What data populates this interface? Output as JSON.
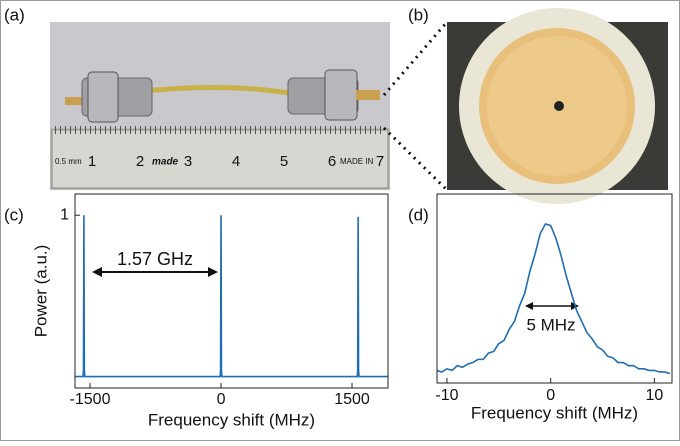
{
  "panels": {
    "a": "(a)",
    "b": "(b)",
    "c": "(c)",
    "d": "(d)"
  },
  "photo_a": {
    "ruler_labels": [
      "1",
      "2",
      "3",
      "4",
      "5",
      "6",
      "7"
    ],
    "ruler_small": "0.5 mm",
    "ruler_brand": "made",
    "ruler_made_in": "MADE IN"
  },
  "chart_data": [
    {
      "type": "line",
      "color": "#1f6db3",
      "xlabel": "Frequency shift (MHz)",
      "ylabel": "Power (a.u.)",
      "annotation": "1.57 GHz",
      "x": [
        -1672,
        -1580,
        -1575,
        -1570,
        -1565,
        -1560,
        -10,
        -5,
        0,
        5,
        10,
        1560,
        1565,
        1570,
        1575,
        1580,
        1912
      ],
      "values": [
        0.01,
        0.01,
        0.05,
        1,
        0.05,
        0.01,
        0.01,
        0.05,
        1,
        0.05,
        0.01,
        0.01,
        0.05,
        0.99,
        0.05,
        0.01,
        0.01
      ],
      "xlim": [
        -1672,
        1912
      ],
      "ylim": [
        -0.06,
        1.13
      ],
      "xticks": [
        -1500,
        0,
        1500
      ],
      "yticks": [
        1
      ]
    },
    {
      "type": "line",
      "color": "#1f6db3",
      "xlabel": "Frequency shift (MHz)",
      "annotation": "5 MHz",
      "x": [
        -11,
        -10.5,
        -10,
        -9.5,
        -9,
        -8.5,
        -8,
        -7.5,
        -7,
        -6.5,
        -6,
        -5.5,
        -5,
        -4.5,
        -4,
        -3.5,
        -3,
        -2.5,
        -2,
        -1.5,
        -1,
        -0.5,
        0,
        0.5,
        1,
        1.5,
        2,
        2.5,
        3,
        3.5,
        4,
        4.5,
        5,
        5.5,
        6,
        6.5,
        7,
        7.5,
        8,
        8.5,
        9,
        9.5,
        10,
        10.5,
        11,
        11.5
      ],
      "values": [
        0.06,
        0.05,
        0.07,
        0.06,
        0.09,
        0.08,
        0.1,
        0.11,
        0.13,
        0.13,
        0.17,
        0.18,
        0.23,
        0.25,
        0.32,
        0.37,
        0.47,
        0.55,
        0.69,
        0.8,
        0.93,
        0.99,
        0.98,
        0.9,
        0.79,
        0.66,
        0.55,
        0.44,
        0.37,
        0.3,
        0.26,
        0.21,
        0.19,
        0.15,
        0.14,
        0.11,
        0.11,
        0.09,
        0.09,
        0.07,
        0.07,
        0.06,
        0.06,
        0.05,
        0.05,
        0.04
      ],
      "xlim": [
        -10.96,
        11.7
      ],
      "ylim": [
        -0.02,
        1.18
      ],
      "xticks": [
        -10,
        0,
        10
      ]
    }
  ]
}
